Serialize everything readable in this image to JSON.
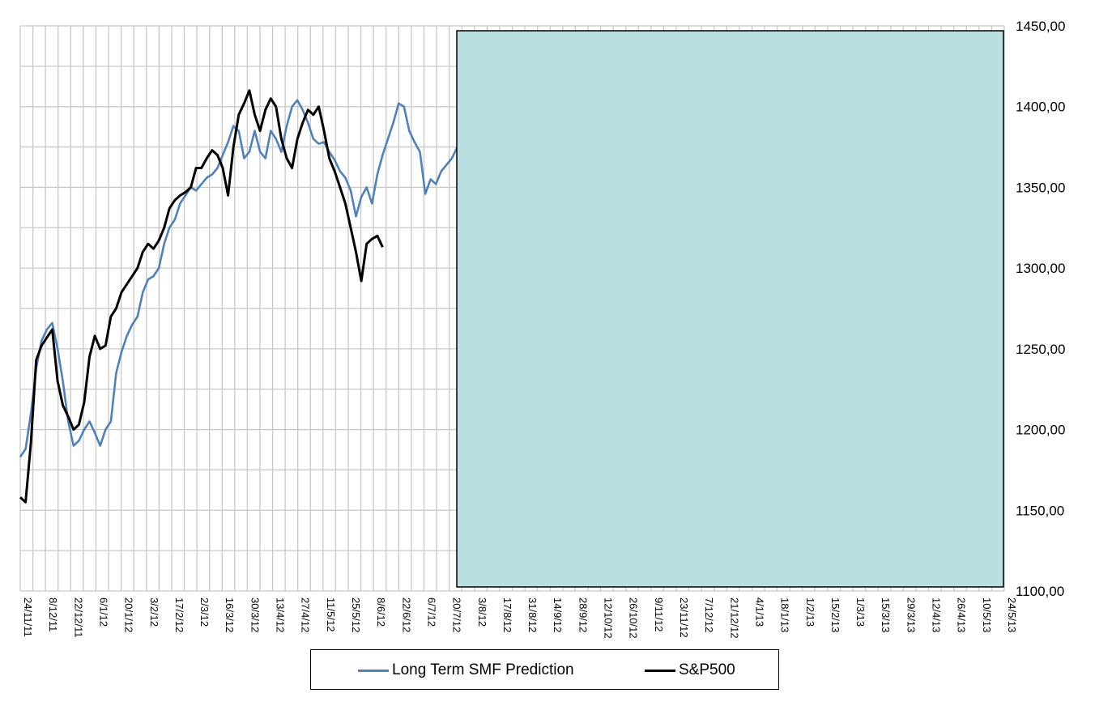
{
  "chart_data": {
    "type": "line",
    "x_dates": [
      "24/11/11",
      "8/12/11",
      "22/12/11",
      "6/1/12",
      "20/1/12",
      "3/2/12",
      "17/2/12",
      "2/3/12",
      "16/3/12",
      "30/3/12",
      "13/4/12",
      "27/4/12",
      "11/5/12",
      "25/5/12",
      "8/6/12",
      "22/6/12",
      "6/7/12",
      "20/7/12",
      "3/8/12",
      "17/8/12",
      "31/8/12",
      "14/9/12",
      "28/9/12",
      "12/10/12",
      "26/10/12",
      "9/11/12",
      "23/11/12",
      "7/12/12",
      "21/12/12",
      "4/1/13",
      "18/1/13",
      "1/2/13",
      "15/2/13",
      "1/3/13",
      "15/3/13",
      "29/3/13",
      "12/4/13",
      "26/4/13",
      "10/5/13",
      "24/5/13"
    ],
    "ylim": [
      1100,
      1450
    ],
    "y_ticks": [
      "1100,00",
      "1150,00",
      "1200,00",
      "1250,00",
      "1300,00",
      "1350,00",
      "1400,00",
      "1450,00"
    ],
    "grid": true,
    "legend_position": "bottom",
    "series": [
      {
        "name": "Long Term SMF Prediction",
        "color": "#4f81bd",
        "points": [
          [
            0,
            1183
          ],
          [
            1,
            1188
          ],
          [
            2,
            1210
          ],
          [
            3,
            1238
          ],
          [
            4,
            1255
          ],
          [
            5,
            1262
          ],
          [
            6,
            1266
          ],
          [
            7,
            1250
          ],
          [
            8,
            1230
          ],
          [
            9,
            1205
          ],
          [
            10,
            1190
          ],
          [
            11,
            1193
          ],
          [
            12,
            1200
          ],
          [
            13,
            1205
          ],
          [
            14,
            1198
          ],
          [
            15,
            1190
          ],
          [
            16,
            1200
          ],
          [
            17,
            1205
          ],
          [
            18,
            1235
          ],
          [
            19,
            1248
          ],
          [
            20,
            1258
          ],
          [
            21,
            1265
          ],
          [
            22,
            1270
          ],
          [
            23,
            1285
          ],
          [
            24,
            1293
          ],
          [
            25,
            1295
          ],
          [
            26,
            1300
          ],
          [
            27,
            1315
          ],
          [
            28,
            1325
          ],
          [
            29,
            1330
          ],
          [
            30,
            1340
          ],
          [
            31,
            1345
          ],
          [
            32,
            1350
          ],
          [
            33,
            1348
          ],
          [
            34,
            1352
          ],
          [
            35,
            1356
          ],
          [
            36,
            1358
          ],
          [
            37,
            1362
          ],
          [
            38,
            1370
          ],
          [
            39,
            1378
          ],
          [
            40,
            1388
          ],
          [
            41,
            1385
          ],
          [
            42,
            1368
          ],
          [
            43,
            1372
          ],
          [
            44,
            1385
          ],
          [
            45,
            1372
          ],
          [
            46,
            1368
          ],
          [
            47,
            1385
          ],
          [
            48,
            1380
          ],
          [
            49,
            1372
          ],
          [
            50,
            1388
          ],
          [
            51,
            1400
          ],
          [
            52,
            1404
          ],
          [
            53,
            1398
          ],
          [
            54,
            1390
          ],
          [
            55,
            1380
          ],
          [
            56,
            1377
          ],
          [
            57,
            1378
          ],
          [
            58,
            1372
          ],
          [
            59,
            1367
          ],
          [
            60,
            1360
          ],
          [
            61,
            1356
          ],
          [
            62,
            1348
          ],
          [
            63,
            1332
          ],
          [
            64,
            1344
          ],
          [
            65,
            1350
          ],
          [
            66,
            1340
          ],
          [
            67,
            1358
          ],
          [
            68,
            1370
          ],
          [
            69,
            1380
          ],
          [
            70,
            1390
          ],
          [
            71,
            1402
          ],
          [
            72,
            1400
          ],
          [
            73,
            1385
          ],
          [
            74,
            1378
          ],
          [
            75,
            1372
          ],
          [
            76,
            1346
          ],
          [
            77,
            1355
          ],
          [
            78,
            1352
          ],
          [
            79,
            1360
          ],
          [
            80,
            1364
          ],
          [
            81,
            1368
          ],
          [
            82,
            1375
          ],
          [
            83,
            1373
          ]
        ]
      },
      {
        "name": "S&P500",
        "color": "#000000",
        "points": [
          [
            0,
            1158
          ],
          [
            1,
            1155
          ],
          [
            2,
            1192
          ],
          [
            3,
            1243
          ],
          [
            4,
            1252
          ],
          [
            5,
            1257
          ],
          [
            6,
            1262
          ],
          [
            7,
            1230
          ],
          [
            8,
            1215
          ],
          [
            9,
            1208
          ],
          [
            10,
            1200
          ],
          [
            11,
            1203
          ],
          [
            12,
            1217
          ],
          [
            13,
            1245
          ],
          [
            14,
            1258
          ],
          [
            15,
            1250
          ],
          [
            16,
            1252
          ],
          [
            17,
            1270
          ],
          [
            18,
            1275
          ],
          [
            19,
            1285
          ],
          [
            20,
            1290
          ],
          [
            21,
            1295
          ],
          [
            22,
            1300
          ],
          [
            23,
            1310
          ],
          [
            24,
            1315
          ],
          [
            25,
            1312
          ],
          [
            26,
            1317
          ],
          [
            27,
            1325
          ],
          [
            28,
            1337
          ],
          [
            29,
            1342
          ],
          [
            30,
            1345
          ],
          [
            31,
            1347
          ],
          [
            32,
            1350
          ],
          [
            33,
            1362
          ],
          [
            34,
            1362
          ],
          [
            35,
            1368
          ],
          [
            36,
            1373
          ],
          [
            37,
            1370
          ],
          [
            38,
            1362
          ],
          [
            39,
            1345
          ],
          [
            40,
            1375
          ],
          [
            41,
            1395
          ],
          [
            42,
            1402
          ],
          [
            43,
            1410
          ],
          [
            44,
            1395
          ],
          [
            45,
            1385
          ],
          [
            46,
            1398
          ],
          [
            47,
            1405
          ],
          [
            48,
            1400
          ],
          [
            49,
            1380
          ],
          [
            50,
            1368
          ],
          [
            51,
            1362
          ],
          [
            52,
            1380
          ],
          [
            53,
            1390
          ],
          [
            54,
            1398
          ],
          [
            55,
            1395
          ],
          [
            56,
            1400
          ],
          [
            57,
            1385
          ],
          [
            58,
            1368
          ],
          [
            59,
            1360
          ],
          [
            60,
            1350
          ],
          [
            61,
            1340
          ],
          [
            62,
            1325
          ],
          [
            63,
            1310
          ],
          [
            64,
            1292
          ],
          [
            65,
            1315
          ],
          [
            66,
            1318
          ],
          [
            67,
            1320
          ],
          [
            68,
            1313
          ]
        ]
      }
    ]
  }
}
